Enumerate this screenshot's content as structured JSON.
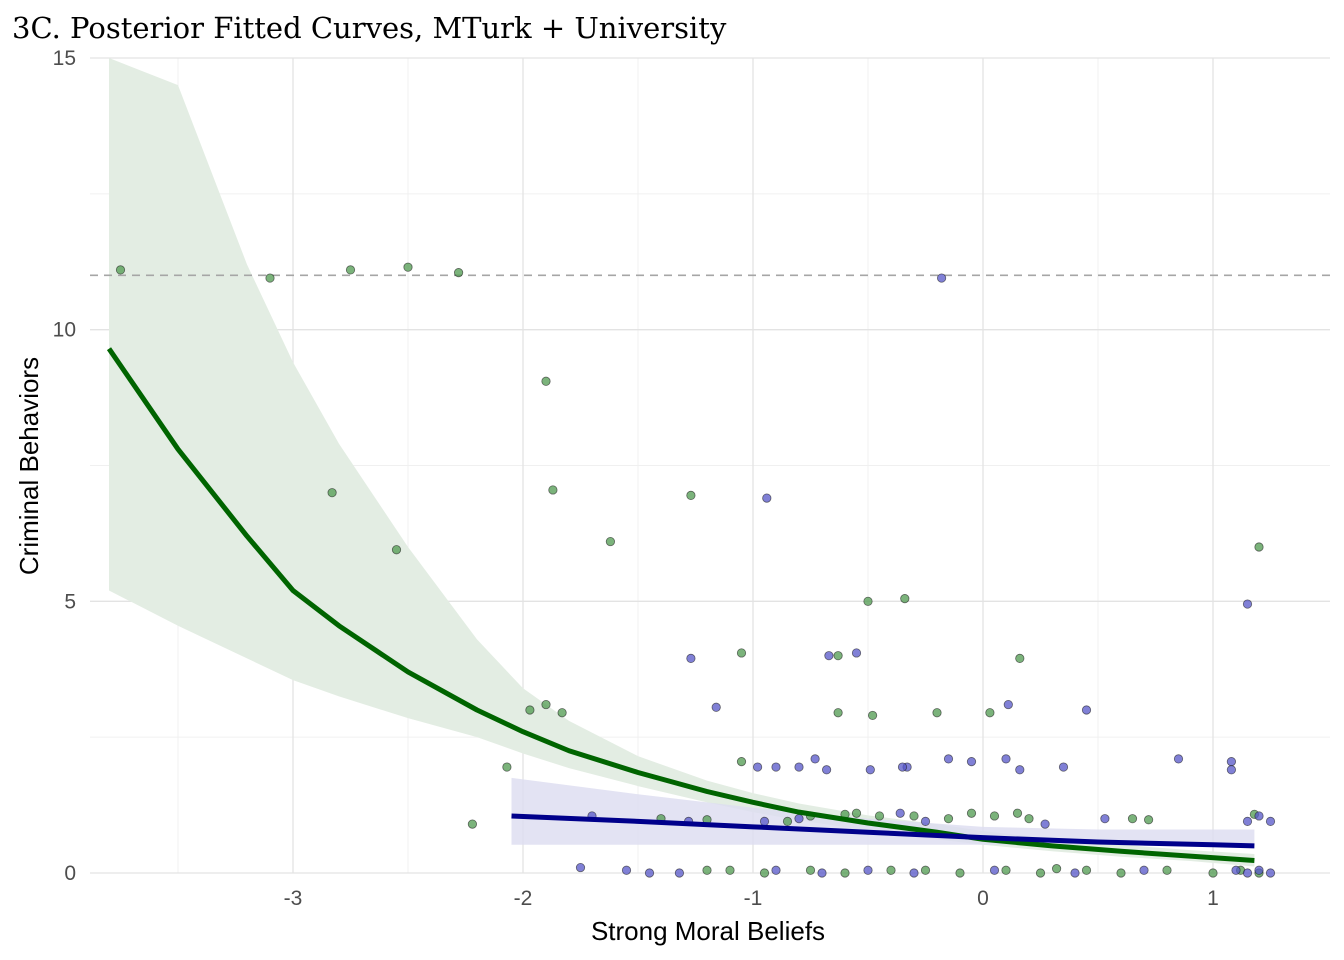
{
  "chart_data": {
    "type": "scatter",
    "title": "3C. Posterior Fitted Curves, MTurk + University",
    "xlabel": "Strong Moral Beliefs",
    "ylabel": "Criminal Behaviors",
    "xlim": [
      -3.8,
      1.3
    ],
    "ylim": [
      0,
      15
    ],
    "x_ticks": [
      -3,
      -2,
      -1,
      0,
      1
    ],
    "x_tick_labels": [
      "-3",
      "-2",
      "-1",
      "0",
      "1"
    ],
    "y_ticks": [
      0,
      5,
      10,
      15
    ],
    "y_tick_labels": [
      "0",
      "5",
      "10",
      "15"
    ],
    "grid": true,
    "reference_line": {
      "y": 11,
      "style": "dashed",
      "color": "#a6a6a6"
    },
    "colors": {
      "green_line": "#006400",
      "green_band": "#e3ede3",
      "green_point": "#4f9a4f",
      "blue_line": "#00008b",
      "blue_band": "#dcdcf0",
      "blue_point": "#5555c8"
    },
    "series": [
      {
        "kind": "ribbon_curve",
        "color": "green",
        "x": [
          -3.8,
          -3.5,
          -3.2,
          -3.0,
          -2.8,
          -2.5,
          -2.2,
          -2.0,
          -1.8,
          -1.5,
          -1.2,
          -1.0,
          -0.8,
          -0.5,
          -0.2,
          0.0,
          0.3,
          0.6,
          0.9,
          1.18
        ],
        "y": [
          9.65,
          7.8,
          6.2,
          5.2,
          4.55,
          3.7,
          3.0,
          2.6,
          2.25,
          1.85,
          1.5,
          1.3,
          1.12,
          0.92,
          0.75,
          0.62,
          0.5,
          0.4,
          0.31,
          0.23
        ],
        "lower": [
          5.2,
          4.55,
          3.95,
          3.55,
          3.25,
          2.85,
          2.5,
          2.2,
          1.93,
          1.6,
          1.3,
          1.12,
          0.97,
          0.78,
          0.62,
          0.52,
          0.4,
          0.3,
          0.22,
          0.12
        ],
        "upper": [
          15.5,
          14.5,
          11.2,
          9.4,
          7.9,
          6.0,
          4.3,
          3.4,
          2.8,
          2.15,
          1.7,
          1.47,
          1.28,
          1.06,
          0.9,
          0.77,
          0.63,
          0.52,
          0.42,
          0.35
        ]
      },
      {
        "kind": "ribbon_curve",
        "color": "blue",
        "x": [
          -2.05,
          -1.5,
          -1.0,
          -0.5,
          0.0,
          0.5,
          1.0,
          1.18
        ],
        "y": [
          1.05,
          0.95,
          0.85,
          0.75,
          0.65,
          0.57,
          0.52,
          0.5
        ],
        "lower": [
          0.52,
          0.52,
          0.52,
          0.52,
          0.52,
          0.52,
          0.52,
          0.52
        ],
        "upper": [
          1.75,
          1.45,
          1.2,
          1.0,
          0.85,
          0.8,
          0.8,
          0.8
        ]
      },
      {
        "kind": "points",
        "color": "green",
        "points": [
          [
            -3.75,
            11.1
          ],
          [
            -3.1,
            10.95
          ],
          [
            -2.75,
            11.1
          ],
          [
            -2.5,
            11.15
          ],
          [
            -2.28,
            11.05
          ],
          [
            -1.9,
            9.05
          ],
          [
            -1.87,
            7.05
          ],
          [
            -2.83,
            7.0
          ],
          [
            -2.55,
            5.95
          ],
          [
            -1.62,
            6.1
          ],
          [
            -1.27,
            6.95
          ],
          [
            -0.5,
            5.0
          ],
          [
            -0.34,
            5.05
          ],
          [
            1.2,
            6.0
          ],
          [
            0.16,
            3.95
          ],
          [
            -0.63,
            4.0
          ],
          [
            -1.05,
            4.05
          ],
          [
            -1.9,
            3.1
          ],
          [
            -1.97,
            3.0
          ],
          [
            -1.83,
            2.95
          ],
          [
            -0.63,
            2.95
          ],
          [
            -0.48,
            2.9
          ],
          [
            -0.2,
            2.95
          ],
          [
            0.03,
            2.95
          ],
          [
            -2.07,
            1.95
          ],
          [
            -2.22,
            0.9
          ],
          [
            -1.05,
            2.05
          ],
          [
            -0.75,
            1.05
          ],
          [
            -0.6,
            1.08
          ],
          [
            -0.55,
            1.1
          ],
          [
            -0.45,
            1.05
          ],
          [
            -0.3,
            1.05
          ],
          [
            -0.15,
            1.0
          ],
          [
            -0.05,
            1.1
          ],
          [
            0.05,
            1.05
          ],
          [
            0.15,
            1.1
          ],
          [
            0.2,
            1.0
          ],
          [
            0.65,
            1.0
          ],
          [
            0.72,
            0.98
          ],
          [
            -1.4,
            1.0
          ],
          [
            -1.2,
            0.98
          ],
          [
            -0.85,
            0.95
          ],
          [
            1.18,
            1.08
          ],
          [
            -1.2,
            0.05
          ],
          [
            -1.1,
            0.05
          ],
          [
            -0.95,
            0.0
          ],
          [
            -0.75,
            0.05
          ],
          [
            -0.6,
            0.0
          ],
          [
            -0.4,
            0.05
          ],
          [
            -0.25,
            0.05
          ],
          [
            -0.1,
            0.0
          ],
          [
            0.1,
            0.05
          ],
          [
            0.25,
            0.0
          ],
          [
            0.32,
            0.08
          ],
          [
            0.45,
            0.05
          ],
          [
            0.6,
            0.0
          ],
          [
            0.8,
            0.05
          ],
          [
            1.0,
            0.0
          ],
          [
            1.12,
            0.05
          ],
          [
            1.2,
            0.0
          ]
        ]
      },
      {
        "kind": "points",
        "color": "blue",
        "points": [
          [
            -0.18,
            10.95
          ],
          [
            -0.94,
            6.9
          ],
          [
            1.15,
            4.95
          ],
          [
            -1.27,
            3.95
          ],
          [
            -0.55,
            4.05
          ],
          [
            -0.67,
            4.0
          ],
          [
            -1.16,
            3.05
          ],
          [
            0.45,
            3.0
          ],
          [
            0.11,
            3.1
          ],
          [
            -0.98,
            1.95
          ],
          [
            -0.9,
            1.95
          ],
          [
            -0.8,
            1.95
          ],
          [
            -0.73,
            2.1
          ],
          [
            -0.68,
            1.9
          ],
          [
            -0.49,
            1.9
          ],
          [
            -0.33,
            1.95
          ],
          [
            -0.35,
            1.95
          ],
          [
            -0.15,
            2.1
          ],
          [
            -0.05,
            2.05
          ],
          [
            0.1,
            2.1
          ],
          [
            0.16,
            1.9
          ],
          [
            0.35,
            1.95
          ],
          [
            0.85,
            2.1
          ],
          [
            1.08,
            2.05
          ],
          [
            1.08,
            1.9
          ],
          [
            -1.7,
            1.05
          ],
          [
            -1.28,
            0.95
          ],
          [
            -0.95,
            0.95
          ],
          [
            -0.8,
            1.0
          ],
          [
            -0.36,
            1.1
          ],
          [
            -0.25,
            0.95
          ],
          [
            0.27,
            0.9
          ],
          [
            0.53,
            1.0
          ],
          [
            1.15,
            0.95
          ],
          [
            1.2,
            1.05
          ],
          [
            1.25,
            0.95
          ],
          [
            -1.75,
            0.1
          ],
          [
            -1.55,
            0.05
          ],
          [
            -1.45,
            0.0
          ],
          [
            -1.32,
            0.0
          ],
          [
            -0.9,
            0.05
          ],
          [
            -0.7,
            0.0
          ],
          [
            -0.5,
            0.05
          ],
          [
            -0.3,
            0.0
          ],
          [
            0.05,
            0.05
          ],
          [
            0.4,
            0.0
          ],
          [
            0.7,
            0.05
          ],
          [
            1.1,
            0.05
          ],
          [
            1.15,
            0.0
          ],
          [
            1.2,
            0.05
          ],
          [
            1.25,
            0.0
          ]
        ]
      }
    ]
  }
}
